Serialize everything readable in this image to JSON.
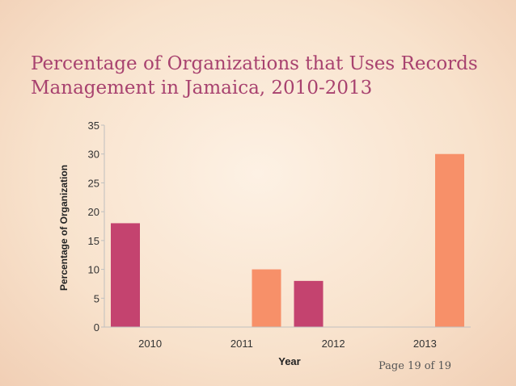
{
  "slide": {
    "title": "Percentage of Organizations that Uses Records Management in Jamaica, 2010-2013",
    "page": "Page 19 of 19"
  },
  "chart_data": {
    "type": "bar",
    "categories": [
      "2010",
      "2011",
      "2012",
      "2013"
    ],
    "series": [
      {
        "values": [
          18,
          null,
          8,
          null
        ],
        "color": "#c4436f"
      },
      {
        "values": [
          null,
          10,
          null,
          30
        ],
        "color": "#f79069"
      }
    ],
    "xlabel": "Year",
    "ylabel": "Percentage of Organization",
    "ylim": [
      0,
      35
    ],
    "yticks": [
      0,
      5,
      10,
      15,
      20,
      25,
      30,
      35
    ],
    "grid": false,
    "legend": "none"
  }
}
